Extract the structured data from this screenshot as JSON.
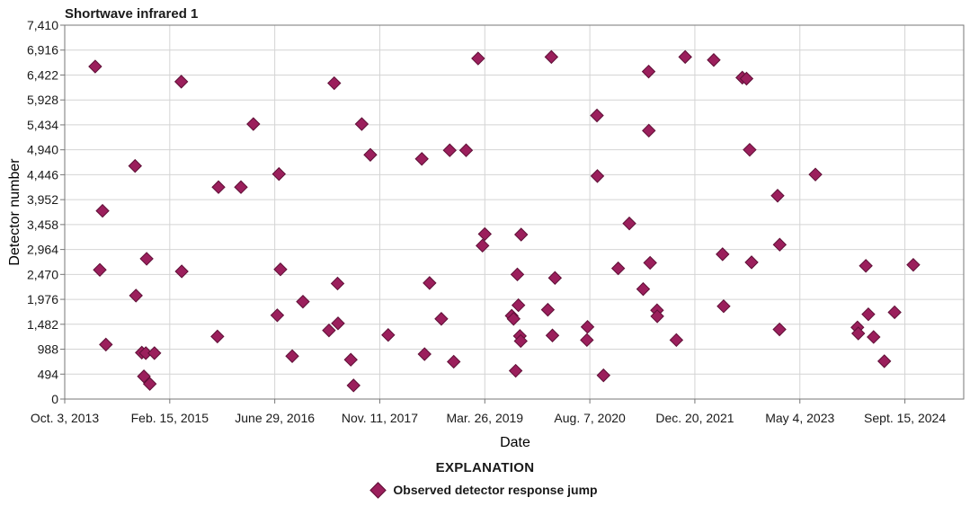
{
  "chart_data": {
    "type": "scatter",
    "title": "Shortwave infrared 1",
    "xlabel": "Date",
    "ylabel": "Detector number",
    "legend_title": "EXPLANATION",
    "xlim": [
      0,
      4280
    ],
    "ylim": [
      0,
      7410
    ],
    "x_unit": "days since Oct. 3, 2013",
    "x_ticks": [
      {
        "value": 0,
        "label": "Oct. 3, 2013"
      },
      {
        "value": 500,
        "label": "Feb. 15, 2015"
      },
      {
        "value": 1000,
        "label": "June 29, 2016"
      },
      {
        "value": 1500,
        "label": "Nov. 11, 2017"
      },
      {
        "value": 2000,
        "label": "Mar. 26, 2019"
      },
      {
        "value": 2500,
        "label": "Aug. 7, 2020"
      },
      {
        "value": 3000,
        "label": "Dec. 20, 2021"
      },
      {
        "value": 3500,
        "label": "May 4, 2023"
      },
      {
        "value": 4000,
        "label": "Sept. 15, 2024"
      }
    ],
    "y_ticks": [
      "0",
      "494",
      "988",
      "1,482",
      "1,976",
      "2,470",
      "2,964",
      "3,458",
      "3,952",
      "4,446",
      "4,940",
      "5,434",
      "5,928",
      "6,422",
      "6,916",
      "7,410"
    ],
    "marker_color": "#9b1f5c",
    "series": [
      {
        "name": "Observed detector response jump",
        "points": [
          [
            145,
            6590
          ],
          [
            167,
            2560
          ],
          [
            180,
            3730
          ],
          [
            196,
            1080
          ],
          [
            335,
            4620
          ],
          [
            339,
            2050
          ],
          [
            367,
            920
          ],
          [
            377,
            450
          ],
          [
            386,
            910
          ],
          [
            390,
            2780
          ],
          [
            405,
            300
          ],
          [
            427,
            910
          ],
          [
            555,
            6290
          ],
          [
            557,
            2530
          ],
          [
            727,
            1240
          ],
          [
            732,
            4200
          ],
          [
            839,
            4200
          ],
          [
            898,
            5450
          ],
          [
            1012,
            1660
          ],
          [
            1020,
            4460
          ],
          [
            1027,
            2570
          ],
          [
            1083,
            850
          ],
          [
            1134,
            1930
          ],
          [
            1258,
            1360
          ],
          [
            1283,
            6260
          ],
          [
            1299,
            2290
          ],
          [
            1301,
            1500
          ],
          [
            1362,
            780
          ],
          [
            1375,
            270
          ],
          [
            1414,
            5450
          ],
          [
            1455,
            4840
          ],
          [
            1540,
            1270
          ],
          [
            1700,
            4760
          ],
          [
            1713,
            890
          ],
          [
            1737,
            2300
          ],
          [
            1793,
            1590
          ],
          [
            1833,
            4930
          ],
          [
            1852,
            740
          ],
          [
            1911,
            4930
          ],
          [
            1968,
            6750
          ],
          [
            1989,
            3040
          ],
          [
            2000,
            3270
          ],
          [
            2128,
            1650
          ],
          [
            2137,
            1590
          ],
          [
            2147,
            560
          ],
          [
            2155,
            2470
          ],
          [
            2160,
            1860
          ],
          [
            2167,
            1250
          ],
          [
            2171,
            1150
          ],
          [
            2173,
            3260
          ],
          [
            2300,
            1770
          ],
          [
            2317,
            6780
          ],
          [
            2322,
            1260
          ],
          [
            2334,
            2400
          ],
          [
            2486,
            1170
          ],
          [
            2489,
            1430
          ],
          [
            2534,
            5620
          ],
          [
            2536,
            4420
          ],
          [
            2565,
            470
          ],
          [
            2635,
            2590
          ],
          [
            2688,
            3480
          ],
          [
            2754,
            2180
          ],
          [
            2780,
            6490
          ],
          [
            2781,
            5320
          ],
          [
            2787,
            2700
          ],
          [
            2820,
            1760
          ],
          [
            2821,
            1640
          ],
          [
            2912,
            1170
          ],
          [
            2954,
            6780
          ],
          [
            3090,
            6720
          ],
          [
            3132,
            2870
          ],
          [
            3137,
            1840
          ],
          [
            3226,
            6370
          ],
          [
            3246,
            6350
          ],
          [
            3261,
            4940
          ],
          [
            3270,
            2710
          ],
          [
            3394,
            4030
          ],
          [
            3404,
            3060
          ],
          [
            3403,
            1380
          ],
          [
            3574,
            4450
          ],
          [
            3774,
            1420
          ],
          [
            3778,
            1300
          ],
          [
            3814,
            2640
          ],
          [
            3826,
            1680
          ],
          [
            3851,
            1230
          ],
          [
            3902,
            750
          ],
          [
            3951,
            1720
          ],
          [
            4040,
            2660
          ]
        ]
      }
    ]
  }
}
